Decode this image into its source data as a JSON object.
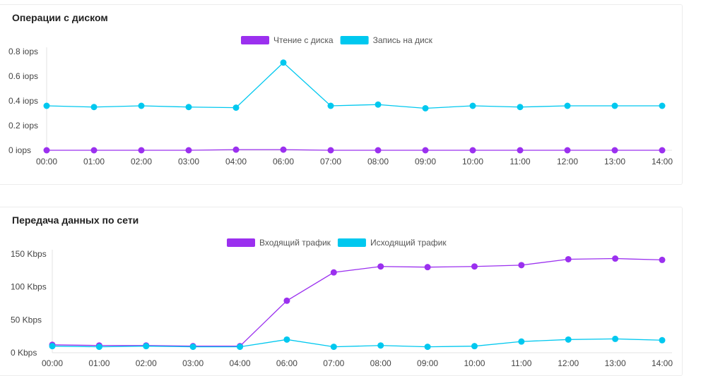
{
  "chart_data": [
    {
      "type": "line",
      "title": "Операции с диском",
      "categories": [
        "00:00",
        "01:00",
        "02:00",
        "03:00",
        "04:00",
        "06:00",
        "07:00",
        "08:00",
        "09:00",
        "10:00",
        "11:00",
        "12:00",
        "13:00",
        "14:00"
      ],
      "ylim": [
        0,
        0.8
      ],
      "yticks": [
        0,
        0.2,
        0.4,
        0.6,
        0.8
      ],
      "yunit": " iops",
      "grid": false,
      "legend": "top-center",
      "series": [
        {
          "name": "Чтение с диска",
          "color": "#9b30ef",
          "values": [
            0,
            0,
            0,
            0,
            0.005,
            0.005,
            0,
            0,
            0,
            0,
            0,
            0,
            0,
            0
          ]
        },
        {
          "name": "Запись на диск",
          "color": "#00c8ef",
          "values": [
            0.36,
            0.35,
            0.36,
            0.35,
            0.345,
            0.71,
            0.36,
            0.37,
            0.34,
            0.36,
            0.35,
            0.36,
            0.36,
            0.36
          ]
        }
      ]
    },
    {
      "type": "line",
      "title": "Передача данных по сети",
      "categories": [
        "00:00",
        "01:00",
        "02:00",
        "03:00",
        "04:00",
        "06:00",
        "07:00",
        "08:00",
        "09:00",
        "10:00",
        "11:00",
        "12:00",
        "13:00",
        "14:00"
      ],
      "ylim": [
        0,
        150
      ],
      "yticks": [
        0,
        50,
        100,
        150
      ],
      "yunit": " Kbps",
      "grid": false,
      "legend": "top-center",
      "series": [
        {
          "name": "Входящий трафик",
          "color": "#9b30ef",
          "values": [
            12,
            11,
            11,
            10,
            10,
            79,
            122,
            131,
            130,
            131,
            133,
            142,
            143,
            141
          ]
        },
        {
          "name": "Исходящий трафик",
          "color": "#00c8ef",
          "values": [
            10,
            9,
            10,
            9,
            9,
            20,
            9,
            11,
            9,
            10,
            17,
            20,
            21,
            19
          ]
        }
      ]
    }
  ]
}
